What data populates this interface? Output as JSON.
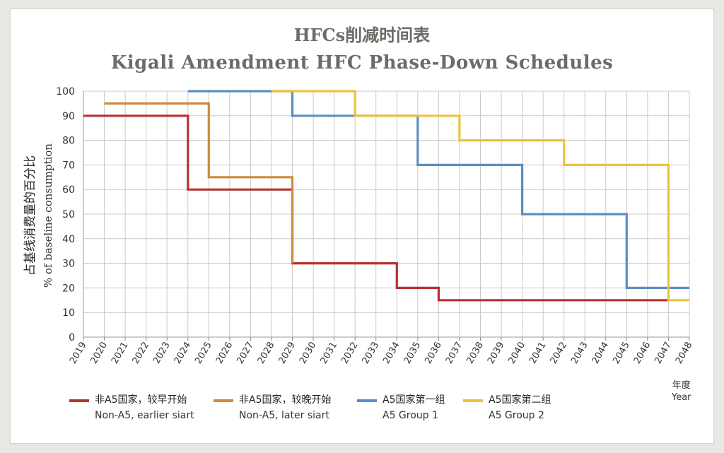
{
  "page": {
    "title_cn": "HFCs削减时间表",
    "title_en": "Kigali Amendment HFC Phase-Down Schedules",
    "y_label_cn": "占基线消费量的百分比",
    "y_label_en": "% of baseline consumption",
    "x_unit_cn": "年度",
    "x_unit_en": "Year"
  },
  "chart_data": {
    "type": "line",
    "step": true,
    "title": "Kigali Amendment HFC Phase-Down Schedules",
    "xlabel": "Year",
    "ylabel": "% of baseline consumption",
    "ylim": [
      0,
      100
    ],
    "yticks": [
      0,
      10,
      20,
      30,
      40,
      50,
      60,
      70,
      80,
      90,
      100
    ],
    "categories": [
      "2019",
      "2020",
      "2021",
      "2022",
      "2023",
      "2024",
      "2025",
      "2026",
      "2027",
      "2028",
      "2029",
      "2030",
      "2031",
      "2032",
      "2033",
      "2034",
      "2035",
      "2036",
      "2037",
      "2038",
      "2039",
      "2040",
      "2041",
      "2042",
      "2043",
      "2044",
      "2045",
      "2046",
      "2047",
      "2048"
    ],
    "grid": true,
    "legend_position": "bottom",
    "series": [
      {
        "name_cn": "非A5国家，较早开始",
        "name": "Non-A5, earlier siart",
        "color": "#b83232",
        "points": [
          [
            "2019",
            90
          ],
          [
            "2024",
            90
          ],
          [
            "2024",
            60
          ],
          [
            "2029",
            60
          ],
          [
            "2029",
            30
          ],
          [
            "2034",
            30
          ],
          [
            "2034",
            20
          ],
          [
            "2036",
            20
          ],
          [
            "2036",
            15
          ],
          [
            "2047",
            15
          ]
        ]
      },
      {
        "name_cn": "非A5国家，较晚开始",
        "name": "Non-A5, later siart",
        "color": "#cf8a3c",
        "points": [
          [
            "2020",
            95
          ],
          [
            "2025",
            95
          ],
          [
            "2025",
            65
          ],
          [
            "2029",
            65
          ],
          [
            "2029",
            30
          ]
        ]
      },
      {
        "name_cn": "A5国家第一组",
        "name": "A5 Group 1",
        "color": "#5b8ec2",
        "points": [
          [
            "2024",
            100
          ],
          [
            "2029",
            100
          ],
          [
            "2029",
            90
          ],
          [
            "2035",
            90
          ],
          [
            "2035",
            70
          ],
          [
            "2040",
            70
          ],
          [
            "2040",
            50
          ],
          [
            "2045",
            50
          ],
          [
            "2045",
            20
          ],
          [
            "2048",
            20
          ]
        ]
      },
      {
        "name_cn": "A5国家第二组",
        "name": "A5 Group 2",
        "color": "#eac43a",
        "points": [
          [
            "2028",
            100
          ],
          [
            "2032",
            100
          ],
          [
            "2032",
            90
          ],
          [
            "2037",
            90
          ],
          [
            "2037",
            80
          ],
          [
            "2042",
            80
          ],
          [
            "2042",
            70
          ],
          [
            "2047",
            70
          ],
          [
            "2047",
            15
          ],
          [
            "2048",
            15
          ]
        ]
      }
    ]
  }
}
